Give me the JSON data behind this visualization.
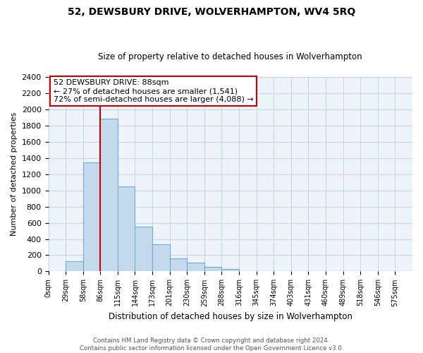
{
  "title": "52, DEWSBURY DRIVE, WOLVERHAMPTON, WV4 5RQ",
  "subtitle": "Size of property relative to detached houses in Wolverhampton",
  "xlabel": "Distribution of detached houses by size in Wolverhampton",
  "ylabel": "Number of detached properties",
  "bin_labels": [
    "0sqm",
    "29sqm",
    "58sqm",
    "86sqm",
    "115sqm",
    "144sqm",
    "173sqm",
    "201sqm",
    "230sqm",
    "259sqm",
    "288sqm",
    "316sqm",
    "345sqm",
    "374sqm",
    "403sqm",
    "431sqm",
    "460sqm",
    "489sqm",
    "518sqm",
    "546sqm",
    "575sqm"
  ],
  "bar_values": [
    0,
    125,
    1350,
    1890,
    1050,
    550,
    335,
    160,
    105,
    55,
    30,
    0,
    0,
    0,
    0,
    0,
    0,
    0,
    0,
    0,
    0
  ],
  "bar_color": "#c5d9ed",
  "bar_edge_color": "#6aaed6",
  "vline_color": "#cc0000",
  "vline_position": 3,
  "ylim": [
    0,
    2400
  ],
  "yticks": [
    0,
    200,
    400,
    600,
    800,
    1000,
    1200,
    1400,
    1600,
    1800,
    2000,
    2200,
    2400
  ],
  "annotation_text_line1": "52 DEWSBURY DRIVE: 88sqm",
  "annotation_text_line2": "← 27% of detached houses are smaller (1,541)",
  "annotation_text_line3": "72% of semi-detached houses are larger (4,088) →",
  "annotation_box_color": "#ffffff",
  "annotation_box_edge": "#cc0000",
  "footer_line1": "Contains HM Land Registry data © Crown copyright and database right 2024.",
  "footer_line2": "Contains public sector information licensed under the Open Government Licence v3.0.",
  "background_color": "#ffffff",
  "grid_color": "#c8d4e8",
  "title_fontsize": 10,
  "subtitle_fontsize": 8.5,
  "ylabel_fontsize": 8,
  "xlabel_fontsize": 8.5
}
